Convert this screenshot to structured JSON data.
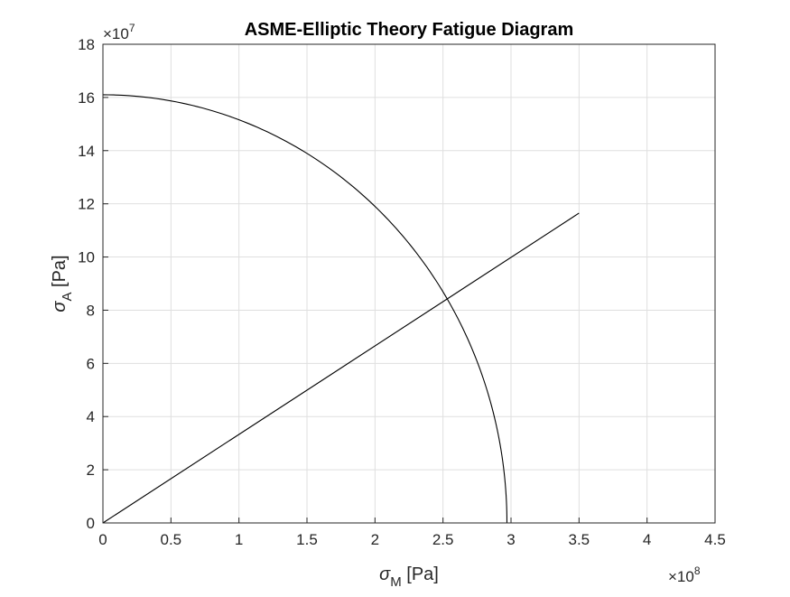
{
  "chart_data": {
    "type": "line",
    "title": "ASME-Elliptic Theory Fatigue Diagram",
    "xlabel": {
      "symbol": "σ",
      "subscript": "M",
      "unit": "[Pa]"
    },
    "ylabel": {
      "symbol": "σ",
      "subscript": "A",
      "unit": "[Pa]"
    },
    "x_exponent": {
      "base": "×10",
      "power": "8"
    },
    "y_exponent": {
      "base": "×10",
      "power": "7"
    },
    "xlim": [
      0,
      450000000
    ],
    "ylim": [
      0,
      180000000
    ],
    "xticks": [
      0,
      50000000,
      100000000,
      150000000,
      200000000,
      250000000,
      300000000,
      350000000,
      400000000,
      450000000
    ],
    "xtick_labels": [
      "0",
      "0.5",
      "1",
      "1.5",
      "2",
      "2.5",
      "3",
      "3.5",
      "4",
      "4.5"
    ],
    "yticks": [
      0,
      20000000,
      40000000,
      60000000,
      80000000,
      100000000,
      120000000,
      140000000,
      160000000,
      180000000
    ],
    "ytick_labels": [
      "0",
      "2",
      "4",
      "6",
      "8",
      "10",
      "12",
      "14",
      "16",
      "18"
    ],
    "grid": true,
    "line_color": "#000000",
    "series": [
      {
        "kind": "ellipse",
        "x": [
          0,
          50000000,
          100000000,
          150000000,
          200000000,
          250000000,
          270000000,
          290000000,
          297000000
        ],
        "y": [
          161000000,
          158300000,
          150100000,
          136000000,
          114300000,
          82300000,
          66200000,
          38000000,
          0
        ]
      },
      {
        "kind": "load-line",
        "x": [
          0,
          350000000
        ],
        "y": [
          0,
          116500000
        ]
      }
    ]
  }
}
